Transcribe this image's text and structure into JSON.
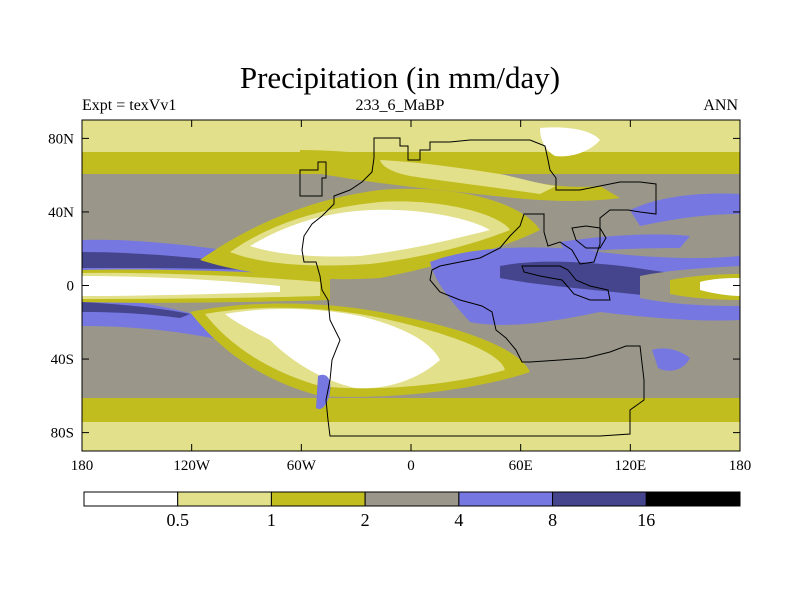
{
  "title": "Precipitation (in mm/day)",
  "subtitle_left": "Expt = texVv1",
  "subtitle_center": "233_6_MaBP",
  "subtitle_right": "ANN",
  "colors": {
    "band0": "#ffffff",
    "band1": "#e2e08a",
    "band2": "#c2bd1e",
    "band3": "#9a978a",
    "band4": "#7777e2",
    "band5": "#45458e",
    "band6": "#000000"
  },
  "map": {
    "lon_range": [
      -180,
      180
    ],
    "lat_range": [
      -90,
      90
    ],
    "x_ticks": [
      {
        "lon": -180,
        "label": "180"
      },
      {
        "lon": -120,
        "label": "120W"
      },
      {
        "lon": -60,
        "label": "60W"
      },
      {
        "lon": 0,
        "label": "0"
      },
      {
        "lon": 60,
        "label": "60E"
      },
      {
        "lon": 120,
        "label": "120E"
      },
      {
        "lon": 180,
        "label": "180"
      }
    ],
    "y_ticks": [
      {
        "lat": 80,
        "label": "80N"
      },
      {
        "lat": 40,
        "label": "40N"
      },
      {
        "lat": 0,
        "label": "0"
      },
      {
        "lat": -40,
        "label": "40S"
      },
      {
        "lat": -80,
        "label": "80S"
      }
    ]
  },
  "colorbar": {
    "levels": [
      "0.5",
      "1",
      "2",
      "4",
      "8",
      "16"
    ],
    "bands": 7
  }
}
